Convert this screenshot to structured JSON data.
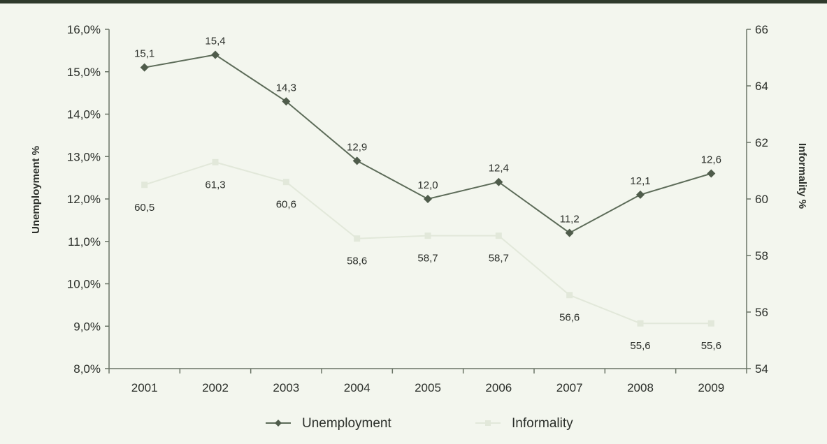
{
  "chart_data": {
    "type": "line",
    "categories": [
      "2001",
      "2002",
      "2003",
      "2004",
      "2005",
      "2006",
      "2007",
      "2008",
      "2009"
    ],
    "series": [
      {
        "name": "Unemployment",
        "axis": "left",
        "values": [
          15.1,
          15.4,
          14.3,
          12.9,
          12.0,
          12.4,
          11.2,
          12.1,
          12.6
        ],
        "labels": [
          "15,1",
          "15,4",
          "14,3",
          "12,9",
          "12,0",
          "12,4",
          "11,2",
          "12,1",
          "12,6"
        ],
        "color": "#5c6b58",
        "marker": "diamond"
      },
      {
        "name": "Informality",
        "axis": "right",
        "values": [
          60.5,
          61.3,
          60.6,
          58.6,
          58.7,
          58.7,
          56.6,
          55.6,
          55.6
        ],
        "labels": [
          "60,5",
          "61,3",
          "60,6",
          "58,6",
          "58,7",
          "58,7",
          "56,6",
          "55,6",
          "55,6"
        ],
        "color": "#e2e8da",
        "marker": "square"
      }
    ],
    "y_left": {
      "label": "Unemployment %",
      "min": 8.0,
      "max": 16.0,
      "ticks": [
        8.0,
        9.0,
        10.0,
        11.0,
        12.0,
        13.0,
        14.0,
        15.0,
        16.0
      ],
      "tick_labels": [
        "8,0%",
        "9,0%",
        "10,0%",
        "11,0%",
        "12,0%",
        "13,0%",
        "14,0%",
        "15,0%",
        "16,0%"
      ]
    },
    "y_right": {
      "label": "Informality %",
      "min": 54,
      "max": 66,
      "ticks": [
        54,
        56,
        58,
        60,
        62,
        64,
        66
      ],
      "tick_labels": [
        "54",
        "56",
        "58",
        "60",
        "62",
        "64",
        "66"
      ]
    },
    "grid": false,
    "legend_position": "bottom-center"
  }
}
